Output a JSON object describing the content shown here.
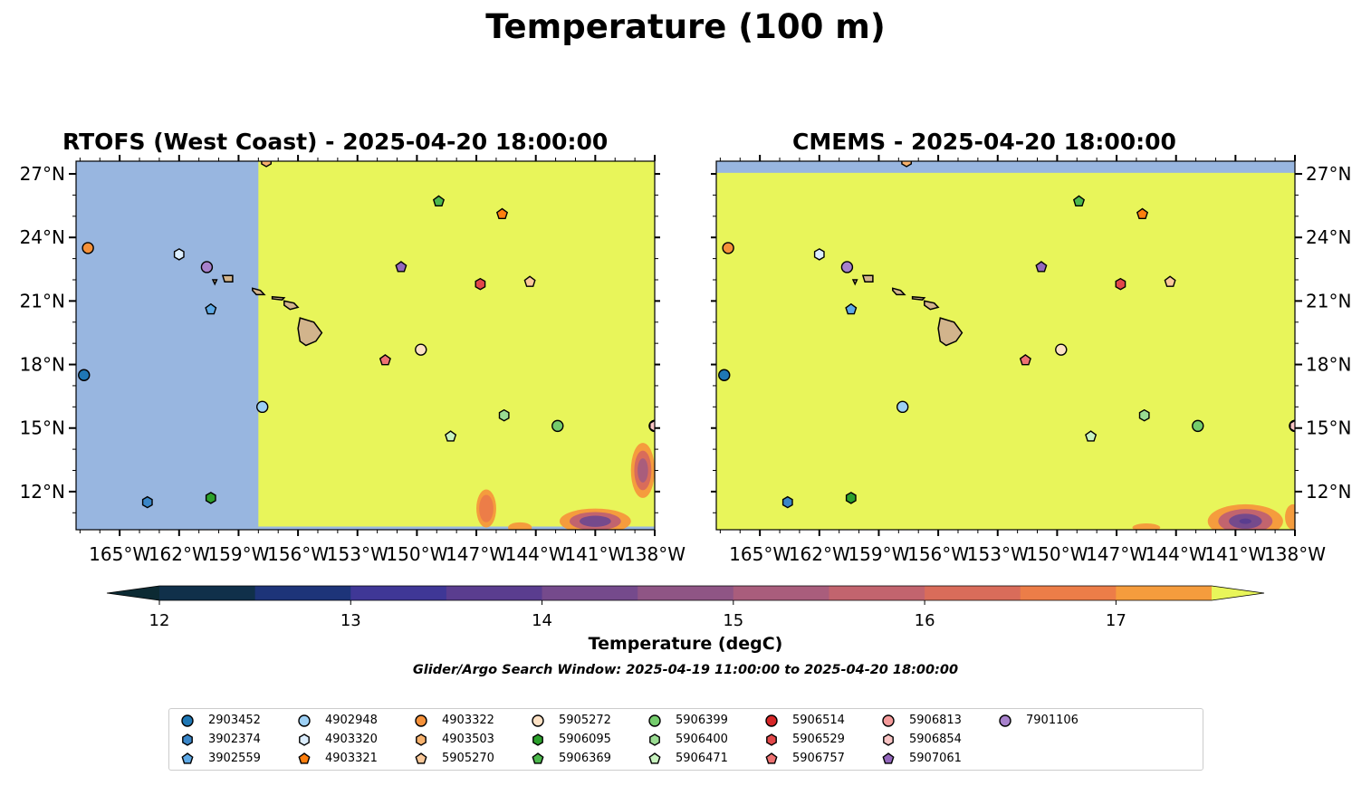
{
  "suptitle": "Temperature (100 m)",
  "panels": [
    {
      "title": "RTOFS (West Coast) - 2025-04-20 18:00:00"
    },
    {
      "title": "CMEMS - 2025-04-20 18:00:00"
    }
  ],
  "map": {
    "lat_range": [
      10.2,
      27.6
    ],
    "lon_range": [
      -167.2,
      -138.0
    ],
    "lat_ticks": [
      "27°N",
      "24°N",
      "21°N",
      "18°N",
      "15°N",
      "12°N"
    ],
    "lon_ticks": [
      "165°W",
      "162°W",
      "159°W",
      "156°W",
      "153°W",
      "150°W",
      "147°W",
      "144°W",
      "141°W",
      "138°W"
    ],
    "land_color": "#d2b48c",
    "no_data_color": "#98b6e0"
  },
  "colorbar": {
    "label": "Temperature (degC)",
    "ticks": [
      "12",
      "13",
      "14",
      "15",
      "16",
      "17"
    ],
    "levels": [
      11.75,
      12.0,
      12.5,
      13.0,
      13.5,
      14.0,
      14.5,
      15.0,
      15.5,
      16.0,
      16.5,
      17.0,
      17.5
    ],
    "colors": [
      "#0c2a33",
      "#10304a",
      "#1d3479",
      "#3f3796",
      "#5a3d8f",
      "#754a8c",
      "#8f5585",
      "#a95d7c",
      "#c2646e",
      "#d96c5a",
      "#ec7d48",
      "#f59c3d",
      "#f6c344",
      "#e8f55a"
    ]
  },
  "search_window": "Glider/Argo Search Window: 2025-04-19 11:00:00 to 2025-04-20 18:00:00",
  "floats": [
    {
      "id": "2903452",
      "marker": "circle",
      "color": "#1f77b4",
      "lon": -166.8,
      "lat": 17.5
    },
    {
      "id": "3902374",
      "marker": "hexagon",
      "color": "#3a86c8",
      "lon": -163.6,
      "lat": 11.5
    },
    {
      "id": "3902559",
      "marker": "pentagon",
      "color": "#5ea9e6",
      "lon": -160.4,
      "lat": 20.6
    },
    {
      "id": "4902948",
      "marker": "circle",
      "color": "#9dd0f5",
      "lon": -157.8,
      "lat": 16.0
    },
    {
      "id": "4903320",
      "marker": "hexagon",
      "color": "#dceeff",
      "lon": -162.0,
      "lat": 23.2
    },
    {
      "id": "4903321",
      "marker": "pentagon",
      "color": "#ff7f0e",
      "lon": -145.7,
      "lat": 25.1
    },
    {
      "id": "4903322",
      "marker": "circle",
      "color": "#f5913a",
      "lon": -166.6,
      "lat": 23.5
    },
    {
      "id": "4903503",
      "marker": "hexagon",
      "color": "#f7b26e",
      "lon": -157.6,
      "lat": 27.6
    },
    {
      "id": "5905270",
      "marker": "pentagon",
      "color": "#fbc99a",
      "lon": -144.3,
      "lat": 21.9
    },
    {
      "id": "5905272",
      "marker": "circle",
      "color": "#fde1c4",
      "lon": -149.8,
      "lat": 18.7
    },
    {
      "id": "5906095",
      "marker": "hexagon",
      "color": "#2ca02c",
      "lon": -160.4,
      "lat": 11.7
    },
    {
      "id": "5906369",
      "marker": "pentagon",
      "color": "#4cb84c",
      "lon": -148.9,
      "lat": 25.7
    },
    {
      "id": "5906399",
      "marker": "circle",
      "color": "#74cc6c",
      "lon": -142.9,
      "lat": 15.1
    },
    {
      "id": "5906400",
      "marker": "hexagon",
      "color": "#9adc92",
      "lon": -145.6,
      "lat": 15.6
    },
    {
      "id": "5906471",
      "marker": "pentagon",
      "color": "#c8f3bf",
      "lon": -148.3,
      "lat": 14.6
    },
    {
      "id": "5906514",
      "marker": "circle",
      "color": "#d62728",
      "lon": -138.0,
      "lat": 15.1
    },
    {
      "id": "5906529",
      "marker": "hexagon",
      "color": "#e2484a",
      "lon": -146.8,
      "lat": 21.8
    },
    {
      "id": "5906757",
      "marker": "pentagon",
      "color": "#ee7272",
      "lon": -151.6,
      "lat": 18.2
    },
    {
      "id": "5906813",
      "marker": "circle",
      "color": "#f49a9a",
      "lon": -138.0,
      "lat": 15.1
    },
    {
      "id": "5906854",
      "marker": "hexagon",
      "color": "#f9c4c4",
      "lon": -138.0,
      "lat": 15.1
    },
    {
      "id": "5907061",
      "marker": "pentagon",
      "color": "#9467bd",
      "lon": -150.8,
      "lat": 22.6
    },
    {
      "id": "7901106",
      "marker": "circle",
      "color": "#a781cc",
      "lon": -160.6,
      "lat": 22.6
    }
  ]
}
